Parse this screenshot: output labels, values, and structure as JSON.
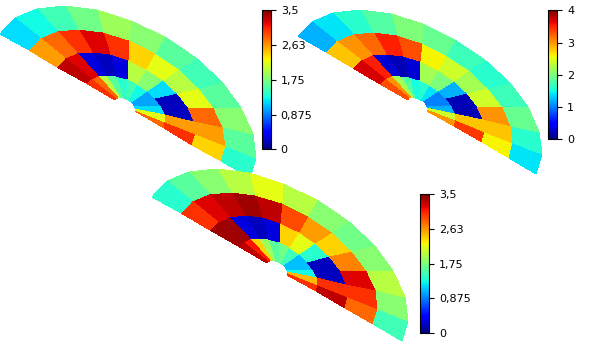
{
  "chart_data": [
    {
      "type": "heatmap",
      "cells": [
        [
          2.8,
          2.2,
          1.2,
          1.0,
          1.0,
          1.3,
          1.5,
          1.4,
          1.6,
          2.0,
          2.8,
          3.0
        ],
        [
          3.0,
          2.6,
          0.2,
          0.2,
          1.2,
          1.8,
          2.0,
          0.3,
          0.2,
          0.3,
          3.2,
          3.3
        ],
        [
          2.4,
          2.6,
          2.8,
          2.2,
          2.0,
          2.2,
          2.4,
          3.0,
          3.2,
          3.0,
          2.8,
          2.6
        ],
        [
          1.4,
          1.6,
          1.8,
          1.6,
          1.5,
          1.6,
          1.8,
          1.9,
          1.7,
          1.5,
          1.3,
          1.2
        ]
      ],
      "colorbar_range": [
        0,
        3.5
      ],
      "colorbar_ticks": [
        0,
        {
          "value": 0.875,
          "label": "0,875"
        },
        {
          "value": 1.75,
          "label": "1,75"
        },
        {
          "value": 2.63,
          "label": "2,63"
        },
        {
          "value": 3.5,
          "label": "3,5"
        }
      ]
    },
    {
      "type": "heatmap",
      "cells": [
        [
          3.0,
          2.4,
          1.2,
          1.0,
          1.0,
          1.4,
          1.6,
          1.5,
          1.8,
          2.2,
          3.0,
          3.3
        ],
        [
          3.4,
          2.8,
          0.2,
          0.2,
          1.2,
          2.0,
          2.2,
          0.3,
          0.2,
          0.3,
          3.5,
          3.7
        ],
        [
          2.6,
          2.8,
          3.0,
          2.4,
          2.2,
          2.4,
          2.6,
          3.3,
          3.5,
          3.2,
          3.0,
          2.8
        ],
        [
          1.4,
          1.6,
          1.9,
          1.7,
          1.6,
          1.7,
          1.9,
          2.0,
          1.8,
          1.6,
          1.4,
          1.2
        ]
      ],
      "colorbar_range": [
        0,
        4
      ],
      "colorbar_ticks": [
        0,
        1,
        2,
        3,
        4
      ]
    },
    {
      "type": "heatmap",
      "cells": [
        [
          3.0,
          2.5,
          1.3,
          1.1,
          1.1,
          1.5,
          1.7,
          1.6,
          1.9,
          2.4,
          3.1,
          3.3
        ],
        [
          3.3,
          3.0,
          0.2,
          0.2,
          1.4,
          2.2,
          2.4,
          0.3,
          0.2,
          0.3,
          3.4,
          3.4
        ],
        [
          2.8,
          3.0,
          3.2,
          2.7,
          2.4,
          2.6,
          2.9,
          3.3,
          3.4,
          3.3,
          3.2,
          3.0
        ],
        [
          1.5,
          1.8,
          2.0,
          1.8,
          1.7,
          1.8,
          2.0,
          2.2,
          2.0,
          1.8,
          1.6,
          1.4
        ]
      ],
      "colorbar_range": [
        0,
        3.5
      ],
      "colorbar_ticks": [
        0,
        {
          "value": 0.875,
          "label": "0,875"
        },
        {
          "value": 1.75,
          "label": "1,75"
        },
        {
          "value": 2.63,
          "label": "2,63"
        },
        {
          "value": 3.5,
          "label": "3,5"
        }
      ]
    }
  ]
}
